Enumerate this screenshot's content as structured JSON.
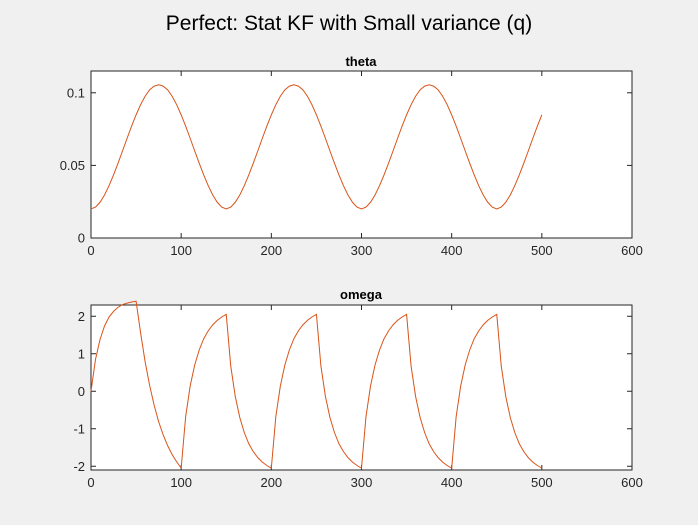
{
  "figure": {
    "suptitle": "Perfect: Stat KF with Small variance (q)",
    "background": "#f0f0f0"
  },
  "chart_data": [
    {
      "type": "line",
      "title": "theta",
      "xlabel": "",
      "ylabel": "",
      "xlim": [
        0,
        600
      ],
      "ylim": [
        0,
        0.115
      ],
      "xticks": [
        0,
        100,
        200,
        300,
        400,
        500,
        600
      ],
      "xtick_labels": [
        "0",
        "100",
        "200",
        "300",
        "400",
        "500",
        "600"
      ],
      "yticks": [
        0,
        0.05,
        0.1
      ],
      "ytick_labels": [
        "0",
        "0.05",
        "0.1"
      ],
      "grid": false,
      "color": "#d95319",
      "series": [
        {
          "x": [
            0,
            5,
            10,
            15,
            20,
            25,
            30,
            35,
            40,
            45,
            50,
            55,
            60,
            65,
            70,
            75,
            80,
            85,
            90,
            95,
            100,
            105,
            110,
            115,
            120,
            125,
            130,
            135,
            140,
            145,
            150,
            155,
            160,
            165,
            170,
            175,
            180,
            185,
            190,
            195,
            200,
            205,
            210,
            215,
            220,
            225,
            230,
            235,
            240,
            245,
            250,
            255,
            260,
            265,
            270,
            275,
            280,
            285,
            290,
            295,
            300,
            305,
            310,
            315,
            320,
            325,
            330,
            335,
            340,
            345,
            350,
            355,
            360,
            365,
            370,
            375,
            380,
            385,
            390,
            395,
            400,
            405,
            410,
            415,
            420,
            425,
            430,
            435,
            440,
            445,
            450,
            455,
            460,
            465,
            470,
            475,
            480,
            485,
            490,
            495,
            500
          ],
          "values": [
            0.02,
            0.0213,
            0.0246,
            0.0296,
            0.036,
            0.0434,
            0.0515,
            0.06,
            0.0686,
            0.077,
            0.0848,
            0.0918,
            0.0976,
            0.102,
            0.1046,
            0.1055,
            0.1046,
            0.102,
            0.0976,
            0.0918,
            0.0848,
            0.077,
            0.0686,
            0.06,
            0.0515,
            0.0434,
            0.036,
            0.0296,
            0.0246,
            0.0213,
            0.02,
            0.0213,
            0.0246,
            0.0296,
            0.036,
            0.0434,
            0.0515,
            0.06,
            0.0686,
            0.077,
            0.0848,
            0.0918,
            0.0976,
            0.102,
            0.1046,
            0.1055,
            0.1046,
            0.102,
            0.0976,
            0.0918,
            0.0848,
            0.077,
            0.0686,
            0.06,
            0.0515,
            0.0434,
            0.036,
            0.0296,
            0.0246,
            0.0213,
            0.02,
            0.0213,
            0.0246,
            0.0296,
            0.036,
            0.0434,
            0.0515,
            0.06,
            0.0686,
            0.077,
            0.0848,
            0.0918,
            0.0976,
            0.102,
            0.1046,
            0.1055,
            0.1046,
            0.102,
            0.0976,
            0.0918,
            0.0848,
            0.077,
            0.0686,
            0.06,
            0.0515,
            0.0434,
            0.036,
            0.0296,
            0.0246,
            0.0213,
            0.02,
            0.0213,
            0.0246,
            0.0296,
            0.036,
            0.0434,
            0.0515,
            0.06,
            0.0686,
            0.077,
            0.0848
          ]
        }
      ]
    },
    {
      "type": "line",
      "title": "omega",
      "xlabel": "",
      "ylabel": "",
      "xlim": [
        0,
        600
      ],
      "ylim": [
        -2.1,
        2.3
      ],
      "xticks": [
        0,
        100,
        200,
        300,
        400,
        500,
        600
      ],
      "xtick_labels": [
        "0",
        "100",
        "200",
        "300",
        "400",
        "500",
        "600"
      ],
      "yticks": [
        -2,
        -1,
        0,
        1,
        2
      ],
      "ytick_labels": [
        "-2",
        "-1",
        "0",
        "1",
        "2"
      ],
      "grid": false,
      "color": "#d95319",
      "series": [
        {
          "x": [
            0,
            5,
            10,
            15,
            20,
            25,
            30,
            35,
            40,
            45,
            50,
            55,
            60,
            65,
            70,
            75,
            80,
            85,
            90,
            95,
            100,
            105,
            110,
            115,
            120,
            125,
            130,
            135,
            140,
            145,
            150,
            155,
            160,
            165,
            170,
            175,
            180,
            185,
            190,
            195,
            200,
            205,
            210,
            215,
            220,
            225,
            230,
            235,
            240,
            245,
            250,
            255,
            260,
            265,
            270,
            275,
            280,
            285,
            290,
            295,
            300,
            305,
            310,
            315,
            320,
            325,
            330,
            335,
            340,
            345,
            350,
            355,
            360,
            365,
            370,
            375,
            380,
            385,
            390,
            395,
            400,
            405,
            410,
            415,
            420,
            425,
            430,
            435,
            440,
            445,
            450,
            455,
            460,
            465,
            470,
            475,
            480,
            485,
            490,
            495,
            500
          ],
          "values": [
            0,
            0.85,
            1.38,
            1.74,
            1.98,
            2.13,
            2.24,
            2.31,
            2.35,
            2.38,
            2.4,
            1.56,
            0.79,
            0.16,
            -0.37,
            -0.81,
            -1.16,
            -1.45,
            -1.69,
            -1.88,
            -2.05,
            -0.67,
            0.14,
            0.7,
            1.1,
            1.4,
            1.61,
            1.77,
            1.89,
            1.98,
            2.05,
            0.67,
            -0.14,
            -0.7,
            -1.1,
            -1.4,
            -1.61,
            -1.77,
            -1.89,
            -1.98,
            -2.05,
            -0.67,
            0.14,
            0.7,
            1.1,
            1.4,
            1.61,
            1.77,
            1.89,
            1.98,
            2.05,
            0.67,
            -0.14,
            -0.7,
            -1.1,
            -1.4,
            -1.61,
            -1.77,
            -1.89,
            -1.98,
            -2.05,
            -0.67,
            0.14,
            0.7,
            1.1,
            1.4,
            1.61,
            1.77,
            1.89,
            1.98,
            2.05,
            0.67,
            -0.14,
            -0.7,
            -1.1,
            -1.4,
            -1.61,
            -1.77,
            -1.89,
            -1.98,
            -2.05,
            -0.67,
            0.14,
            0.7,
            1.1,
            1.4,
            1.61,
            1.77,
            1.89,
            1.98,
            2.05,
            0.67,
            -0.14,
            -0.7,
            -1.1,
            -1.4,
            -1.61,
            -1.77,
            -1.89,
            -1.98,
            -2.05
          ]
        }
      ]
    }
  ]
}
